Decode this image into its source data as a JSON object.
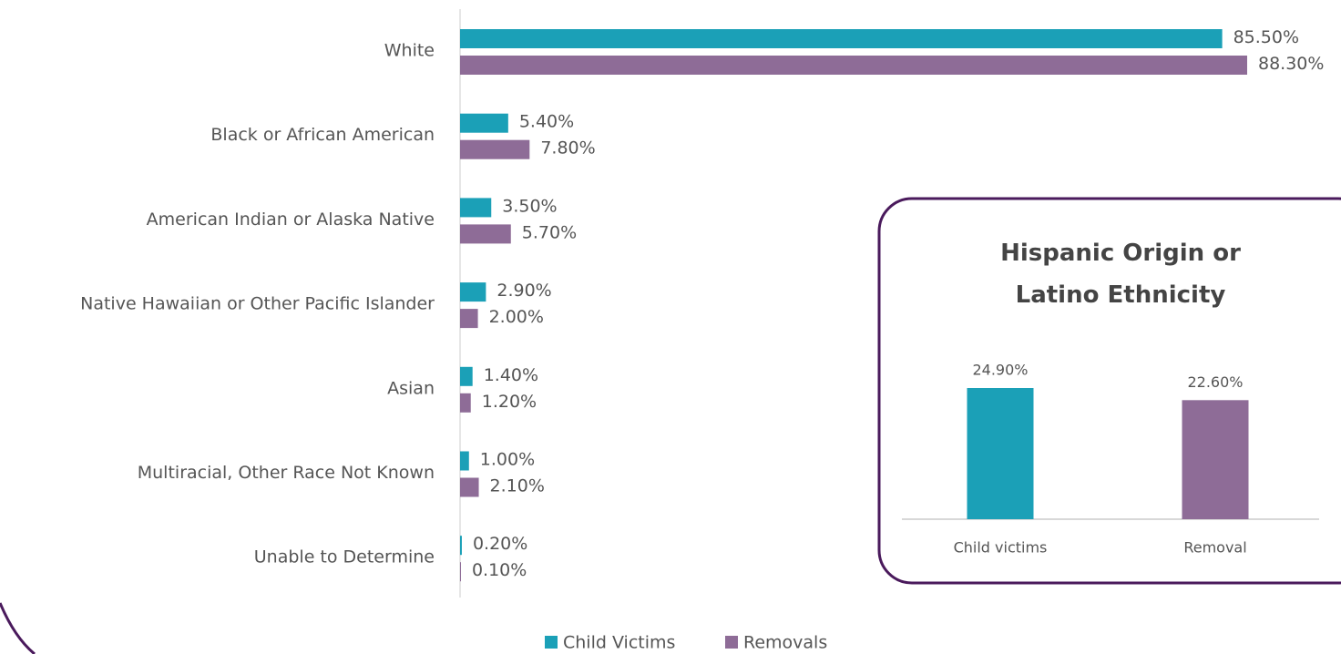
{
  "chart_data": [
    {
      "type": "hbar",
      "categories": [
        "White",
        "Black or African American",
        "American Indian or Alaska Native",
        "Native Hawaiian or Other Pacific Islander",
        "Asian",
        "Multiracial, Other Race Not Known",
        "Unable to Determine"
      ],
      "series": [
        {
          "name": "Child Victims",
          "color": "#1ba0b7",
          "values": [
            85.5,
            5.4,
            3.5,
            2.9,
            1.4,
            1.0,
            0.2
          ],
          "value_labels": [
            "85.50%",
            "5.40%",
            "3.50%",
            "2.90%",
            "1.40%",
            "1.00%",
            "0.20%"
          ]
        },
        {
          "name": "Removals",
          "color": "#8e6c97",
          "values": [
            88.3,
            7.8,
            5.7,
            2.0,
            1.2,
            2.1,
            0.1
          ],
          "value_labels": [
            "88.30%",
            "7.80%",
            "5.70%",
            "2.00%",
            "1.20%",
            "2.10%",
            "0.10%"
          ]
        }
      ],
      "legend": "bottom"
    },
    {
      "type": "bar",
      "title": "Hispanic Origin or Latino Ethnicity",
      "categories": [
        "Child victims",
        "Removal"
      ],
      "values": [
        24.9,
        22.6
      ],
      "value_labels": [
        "24.90%",
        "22.60%"
      ],
      "colors": [
        "#1ba0b7",
        "#8e6c97"
      ]
    }
  ]
}
